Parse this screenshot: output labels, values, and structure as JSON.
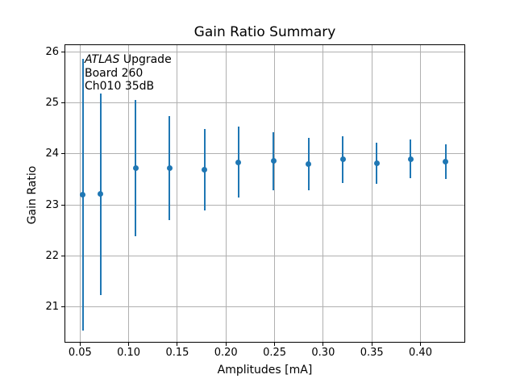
{
  "figure": {
    "title": "Gain Ratio Summary",
    "axes": {
      "xlabel": "Amplitudes [mA]",
      "ylabel": "Gain Ratio"
    },
    "annotation": {
      "line1_italic": "ATLAS",
      "line1_rest": " Upgrade",
      "line2": "Board 260",
      "line3": "Ch010 35dB"
    },
    "colors": {
      "series": "#1f77b4",
      "grid": "#b0b0b0",
      "spine": "#000000",
      "text": "#000000",
      "background": "#ffffff"
    }
  },
  "chart_data": {
    "type": "scatter",
    "subtype": "errorbar",
    "title": "Gain Ratio Summary",
    "xlabel": "Amplitudes [mA]",
    "ylabel": "Gain Ratio",
    "x": [
      0.053,
      0.071,
      0.107,
      0.142,
      0.178,
      0.213,
      0.249,
      0.285,
      0.32,
      0.355,
      0.39,
      0.426
    ],
    "y": [
      23.2,
      23.21,
      23.72,
      23.73,
      23.69,
      23.84,
      23.86,
      23.8,
      23.89,
      23.82,
      23.9,
      23.85
    ],
    "yerr": [
      2.66,
      1.97,
      1.34,
      1.02,
      0.8,
      0.7,
      0.57,
      0.51,
      0.46,
      0.4,
      0.38,
      0.34
    ],
    "xlim": [
      0.034,
      0.446
    ],
    "ylim": [
      20.3,
      26.15
    ],
    "xticks": [
      0.05,
      0.1,
      0.15,
      0.2,
      0.25,
      0.3,
      0.35,
      0.4
    ],
    "yticks": [
      21,
      22,
      23,
      24,
      25,
      26
    ],
    "x_tick_decimals": 2,
    "grid": true,
    "legend": null,
    "marker": "circle",
    "error_caps": false,
    "series_color": "#1f77b4",
    "annotation_lines": [
      "ATLAS Upgrade",
      "Board 260",
      "Ch010 35dB"
    ]
  }
}
